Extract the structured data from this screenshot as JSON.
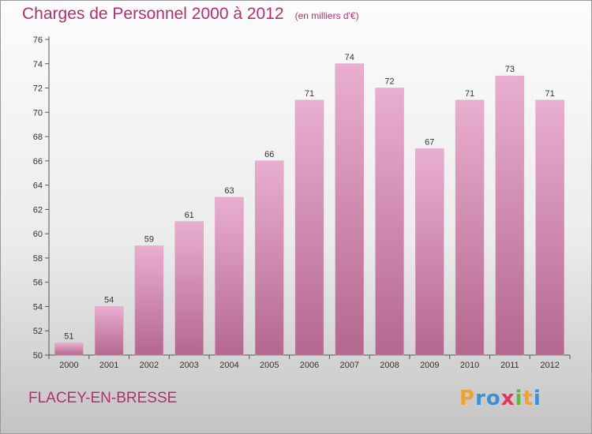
{
  "title": "Charges de Personnel 2000 à 2012",
  "subtitle": "(en milliers d'€)",
  "place": "FLACEY-EN-BRESSE",
  "logo": {
    "letters": [
      "P",
      "r",
      "o",
      "x",
      "i",
      "t",
      "i"
    ],
    "colors": [
      "#f2a12a",
      "#3f8fd0",
      "#3f8fd0",
      "#e8335a",
      "#6ab43c",
      "#f2a12a",
      "#3f8fd0"
    ]
  },
  "colors": {
    "bar_top": "#e9aed0",
    "bar_bottom": "#b4678f",
    "text": "#b0306e"
  },
  "chart_data": {
    "type": "bar",
    "title": "Charges de Personnel 2000 à 2012",
    "subtitle": "(en milliers d'€)",
    "categories": [
      "2000",
      "2001",
      "2002",
      "2003",
      "2004",
      "2005",
      "2006",
      "2007",
      "2008",
      "2009",
      "2010",
      "2011",
      "2012"
    ],
    "values": [
      51,
      54,
      59,
      61,
      63,
      66,
      71,
      74,
      72,
      67,
      71,
      73,
      71
    ],
    "xlabel": "",
    "ylabel": "",
    "ylim": [
      50,
      76
    ],
    "yticks": [
      50,
      52,
      54,
      56,
      58,
      60,
      62,
      64,
      66,
      68,
      70,
      72,
      74,
      76
    ],
    "grid": false,
    "legend": "none"
  }
}
